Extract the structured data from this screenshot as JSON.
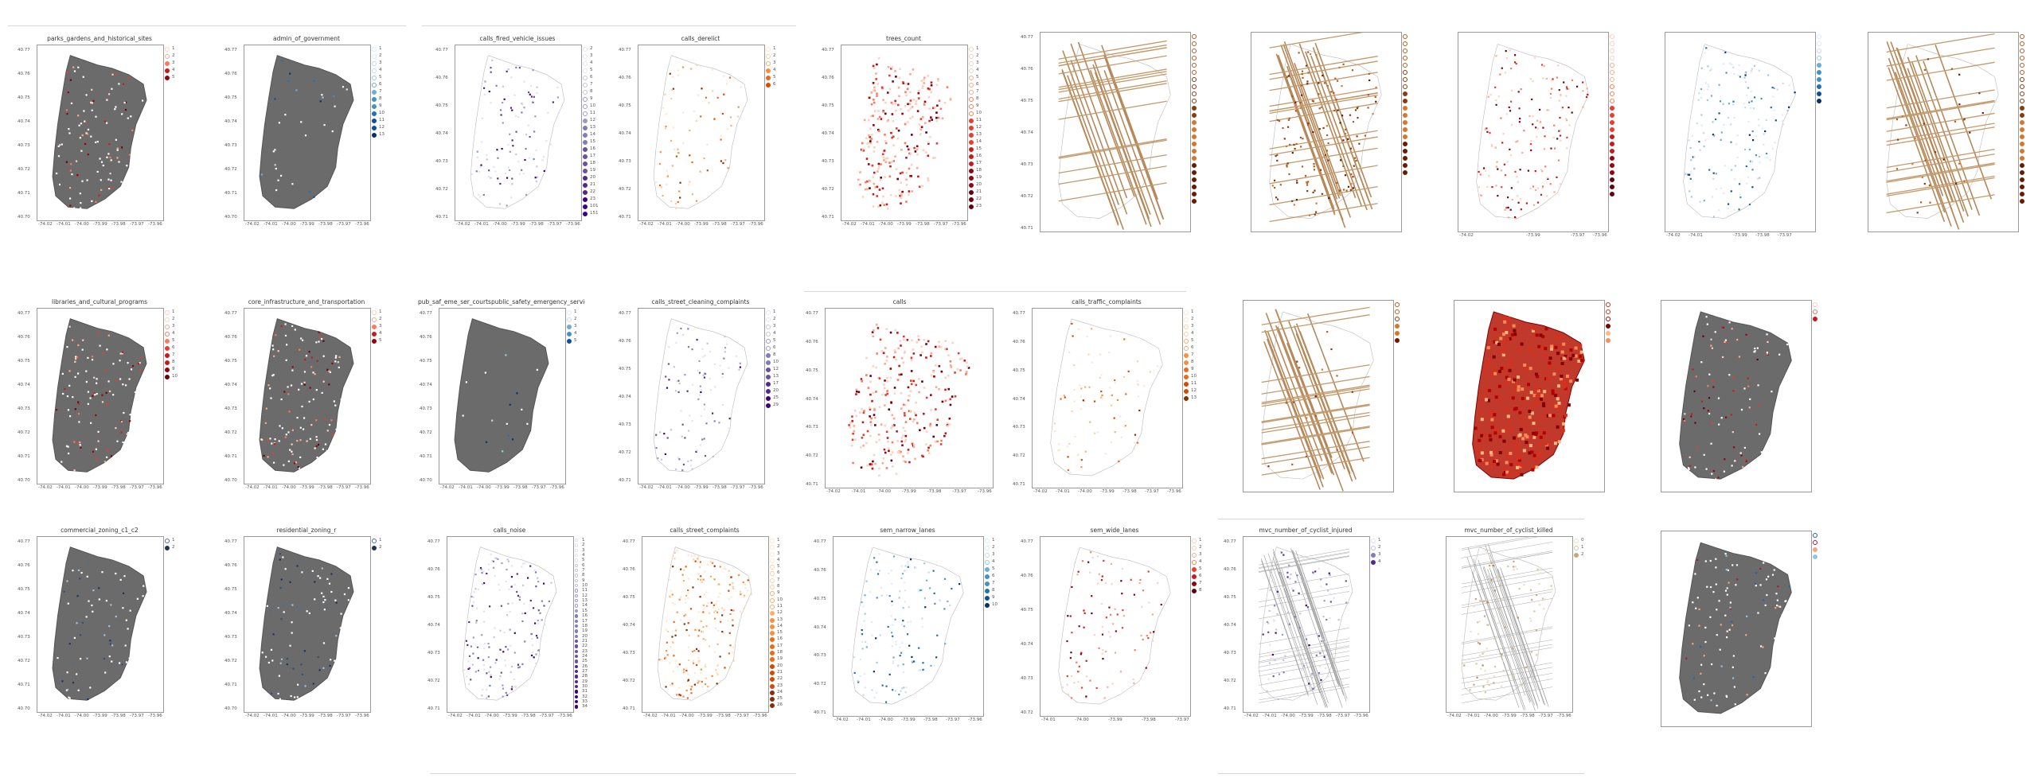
{
  "page": {
    "background": "#ffffff"
  },
  "chart_data": [
    {
      "type": "scatter",
      "title": "parks_gardens_and_historical_sites",
      "cmap": "reds",
      "map": "gray",
      "density": 0.35,
      "yticks": [
        "40.77",
        "40.76",
        "40.75",
        "40.74",
        "40.73",
        "40.72",
        "40.71",
        "40.70"
      ],
      "xticks": [
        "-74.02",
        "-74.01",
        "-74.00",
        "-73.99",
        "-73.98",
        "-73.97",
        "-73.96"
      ],
      "legend": [
        "1",
        "2",
        "3",
        "4",
        "5"
      ],
      "seed": 11
    },
    {
      "type": "scatter",
      "title": "admin_of_government",
      "cmap": "blues",
      "map": "gray",
      "density": 0.1,
      "yticks": [
        "40.77",
        "40.76",
        "40.75",
        "40.74",
        "40.73",
        "40.72",
        "40.71",
        "40.70"
      ],
      "xticks": [
        "-74.02",
        "-74.01",
        "-74.00",
        "-73.99",
        "-73.98",
        "-73.97",
        "-73.96"
      ],
      "legend": [
        "1",
        "2",
        "3",
        "4",
        "5",
        "6",
        "7",
        "8",
        "9",
        "10",
        "11",
        "12",
        "13"
      ],
      "seed": 12
    },
    {
      "type": "scatter",
      "title": "calls_fired_vehicle_issues",
      "cmap": "purples",
      "map": "light",
      "density": 0.35,
      "yticks": [
        "40.77",
        "40.76",
        "40.75",
        "40.74",
        "40.73",
        "40.72",
        "40.71"
      ],
      "xticks": [
        "-74.02",
        "-74.01",
        "-74.00",
        "-73.99",
        "-73.98",
        "-73.97",
        "-73.96"
      ],
      "legend": [
        "2",
        "3",
        "4",
        "5",
        "6",
        "7",
        "8",
        "9",
        "10",
        "11",
        "12",
        "13",
        "14",
        "15",
        "16",
        "17",
        "18",
        "19",
        "20",
        "21",
        "22",
        "23",
        "101",
        "151"
      ],
      "seed": 13
    },
    {
      "type": "scatter",
      "title": "calls_derelict",
      "cmap": "oranges",
      "map": "light",
      "density": 0.25,
      "yticks": [
        "40.77",
        "40.76",
        "40.75",
        "40.74",
        "40.73",
        "40.72",
        "40.71"
      ],
      "xticks": [
        "-74.02",
        "-74.01",
        "-74.00",
        "-73.99",
        "-73.98",
        "-73.97",
        "-73.96"
      ],
      "legend": [
        "1",
        "2",
        "3",
        "4",
        "5",
        "6"
      ],
      "seed": 14
    },
    {
      "type": "scatter",
      "title": "trees_count",
      "cmap": "reds",
      "map": "dense",
      "density": 0.9,
      "yticks": [
        "40.77",
        "40.76",
        "40.75",
        "40.74",
        "40.73",
        "40.72",
        "40.71"
      ],
      "xticks": [
        "-74.02",
        "-74.01",
        "-74.00",
        "-73.99",
        "-73.98",
        "-73.97",
        "-73.96"
      ],
      "legend": [
        "1",
        "2",
        "3",
        "4",
        "5",
        "6",
        "7",
        "8",
        "9",
        "10",
        "11",
        "12",
        "13",
        "14",
        "15",
        "16",
        "17",
        "18",
        "19",
        "20",
        "21",
        "22",
        "23"
      ],
      "seed": 15
    },
    {
      "type": "scatter",
      "title": "",
      "cmap": "streets",
      "map": "streets",
      "density": 0.0,
      "yticks": [
        "40.77",
        "40.76",
        "40.75",
        "40.74",
        "40.73",
        "40.72",
        "40.71"
      ],
      "xticks": [
        "",
        "",
        "",
        "",
        "",
        "",
        ""
      ],
      "legend": [
        "",
        "",
        "",
        "",
        "",
        "",
        "",
        "",
        "",
        "",
        "",
        "",
        "",
        "",
        "",
        "",
        "",
        "",
        "",
        "",
        "",
        "",
        "",
        ""
      ],
      "seed": 16
    },
    {
      "type": "scatter",
      "title": "",
      "cmap": "streets",
      "map": "streetsdense",
      "density": 0.5,
      "yticks": [
        "",
        "",
        "",
        "",
        "",
        "",
        ""
      ],
      "xticks": [
        "",
        "",
        "",
        "",
        "",
        "",
        ""
      ],
      "legend": [
        "",
        "",
        "",
        "",
        "",
        "",
        "",
        "",
        "",
        "",
        "",
        "",
        "",
        "",
        "",
        "",
        "",
        "",
        "",
        ""
      ],
      "seed": 17
    },
    {
      "type": "scatter",
      "title": "",
      "cmap": "reds",
      "map": "light",
      "density": 0.55,
      "yticks": [
        "",
        "",
        "",
        "",
        "",
        "",
        ""
      ],
      "xticks": [
        "-74.02",
        "",
        "",
        "-73.99",
        "",
        "-73.97",
        "-73.96"
      ],
      "legend": [
        "",
        "",
        "",
        "",
        "",
        "",
        "",
        "",
        "",
        "",
        "",
        "",
        "",
        "",
        "",
        "",
        "",
        "",
        "",
        "",
        "",
        "",
        ""
      ],
      "seed": 18
    },
    {
      "type": "scatter",
      "title": "",
      "cmap": "blues",
      "map": "light",
      "density": 0.5,
      "yticks": [
        "",
        "",
        "",
        "",
        "",
        "",
        ""
      ],
      "xticks": [
        "-74.02",
        "-74.01",
        "",
        "-73.99",
        "-73.98",
        "-73.97",
        ""
      ],
      "legend": [
        "",
        "",
        "",
        "",
        "",
        "",
        "",
        "",
        "",
        ""
      ],
      "seed": 19
    },
    {
      "type": "scatter",
      "title": "",
      "cmap": "streets",
      "map": "streets",
      "density": 0.1,
      "yticks": [
        "",
        "",
        "",
        "",
        "",
        "",
        ""
      ],
      "xticks": [
        "",
        "",
        "",
        "",
        "",
        "",
        ""
      ],
      "legend": [
        "",
        "",
        "",
        "",
        "",
        "",
        "",
        "",
        "",
        "",
        "",
        "",
        "",
        "",
        "",
        "",
        "",
        "",
        "",
        "",
        "",
        "",
        "",
        ""
      ],
      "seed": 20
    },
    {
      "type": "scatter",
      "title": "libraries_and_cultural_programs",
      "cmap": "reds",
      "map": "gray",
      "density": 0.35,
      "yticks": [
        "40.77",
        "40.76",
        "40.75",
        "40.74",
        "40.73",
        "40.72",
        "40.71",
        "40.70"
      ],
      "xticks": [
        "-74.02",
        "-74.01",
        "-74.00",
        "-73.99",
        "-73.98",
        "-73.97",
        "-73.96"
      ],
      "legend": [
        "1",
        "2",
        "3",
        "4",
        "5",
        "6",
        "7",
        "8",
        "9",
        "10"
      ],
      "seed": 21
    },
    {
      "type": "scatter",
      "title": "core_infrastructure_and_transportation",
      "cmap": "reds",
      "map": "gray",
      "density": 0.4,
      "yticks": [
        "40.77",
        "40.76",
        "40.75",
        "40.74",
        "40.73",
        "40.72",
        "40.71",
        "40.70"
      ],
      "xticks": [
        "-74.02",
        "-74.01",
        "-74.00",
        "-73.99",
        "-73.98",
        "-73.97",
        "-73.96"
      ],
      "legend": [
        "1",
        "2",
        "3",
        "4",
        "5"
      ],
      "seed": 22
    },
    {
      "type": "scatter",
      "title": "pub_saf_eme_ser_courtspublic_safety_emergency_services_and_admin_of_justice count",
      "cmap": "blues",
      "map": "gray",
      "density": 0.05,
      "yticks": [
        "40.77",
        "40.76",
        "40.75",
        "40.74",
        "40.73",
        "40.72",
        "40.71",
        "40.70"
      ],
      "xticks": [
        "-74.02",
        "-74.01",
        "-74.00",
        "-73.99",
        "-73.98",
        "-73.97",
        "-73.96"
      ],
      "legend": [
        "1",
        "2",
        "3",
        "4",
        "5"
      ],
      "seed": 23
    },
    {
      "type": "scatter",
      "title": "calls_street_cleaning_complaints",
      "cmap": "purples",
      "map": "light",
      "density": 0.3,
      "yticks": [
        "40.77",
        "40.76",
        "40.75",
        "40.74",
        "40.73",
        "40.72",
        "40.71"
      ],
      "xticks": [
        "-74.02",
        "-74.01",
        "-74.00",
        "-73.99",
        "-73.98",
        "-73.97",
        "-73.96"
      ],
      "legend": [
        "1",
        "2",
        "3",
        "4",
        "5",
        "6",
        "8",
        "10",
        "12",
        "13",
        "17",
        "20",
        "25",
        "29"
      ],
      "seed": 24
    },
    {
      "type": "scatter",
      "title": "calls",
      "cmap": "reds",
      "map": "dense",
      "density": 0.95,
      "yticks": [
        "40.77",
        "40.76",
        "40.75",
        "40.74",
        "40.73",
        "40.72",
        "40.71"
      ],
      "xticks": [
        "-74.02",
        "-74.01",
        "-74.00",
        "-73.99",
        "-73.98",
        "-73.97",
        "-73.96"
      ],
      "legend": [],
      "seed": 25
    },
    {
      "type": "scatter",
      "title": "calls_traffic_complaints",
      "cmap": "oranges",
      "map": "light",
      "density": 0.25,
      "yticks": [
        "40.77",
        "40.76",
        "40.75",
        "40.74",
        "40.73",
        "40.72",
        "40.71"
      ],
      "xticks": [
        "-74.02",
        "-74.01",
        "-74.00",
        "-73.99",
        "-73.98",
        "-73.97",
        "-73.96"
      ],
      "legend": [
        "1",
        "2",
        "3",
        "4",
        "5",
        "6",
        "7",
        "8",
        "9",
        "10",
        "11",
        "12",
        "13"
      ],
      "seed": 26
    },
    {
      "type": "scatter",
      "title": "",
      "cmap": "streets",
      "map": "streets",
      "density": 0.05,
      "yticks": [
        "",
        "",
        "",
        "",
        "",
        "",
        ""
      ],
      "xticks": [
        "",
        "",
        "",
        "",
        "",
        "",
        ""
      ],
      "legend": [
        "",
        "",
        "",
        "",
        "",
        ""
      ],
      "seed": 27
    },
    {
      "type": "scatter",
      "title": "",
      "cmap": "redzone",
      "map": "redzone",
      "density": 0.95,
      "yticks": [
        "",
        "",
        "",
        "",
        "",
        "",
        ""
      ],
      "xticks": [
        "",
        "",
        "",
        "",
        "",
        "",
        ""
      ],
      "legend": [
        "",
        "",
        "",
        "",
        "",
        ""
      ],
      "seed": 28
    },
    {
      "type": "scatter",
      "title": "",
      "cmap": "reds",
      "map": "gray",
      "density": 0.3,
      "yticks": [
        "",
        "",
        "",
        "",
        "",
        "",
        ""
      ],
      "xticks": [
        "",
        "",
        "",
        "",
        "",
        "",
        ""
      ],
      "legend": [
        "",
        "",
        ""
      ],
      "seed": 29
    },
    {
      "type": "scatter",
      "title": "commercial_zoning_c1_c2",
      "cmap": "navy",
      "map": "gray",
      "density": 0.2,
      "yticks": [
        "40.77",
        "40.76",
        "40.75",
        "40.74",
        "40.73",
        "40.72",
        "40.71",
        "40.70"
      ],
      "xticks": [
        "-74.02",
        "-74.01",
        "-74.00",
        "-73.99",
        "-73.98",
        "-73.97",
        "-73.96"
      ],
      "legend": [
        "1",
        "2"
      ],
      "seed": 30
    },
    {
      "type": "scatter",
      "title": "residential_zoning_r",
      "cmap": "navy",
      "map": "gray",
      "density": 0.25,
      "yticks": [
        "40.77",
        "40.76",
        "40.75",
        "40.74",
        "40.73",
        "40.72",
        "40.71",
        "40.70"
      ],
      "xticks": [
        "-74.02",
        "-74.01",
        "-74.00",
        "-73.99",
        "-73.98",
        "-73.97",
        "-73.96"
      ],
      "legend": [
        "1",
        "2"
      ],
      "seed": 31
    },
    {
      "type": "scatter",
      "title": "calls_noise",
      "cmap": "purples",
      "map": "light",
      "density": 0.6,
      "yticks": [
        "40.77",
        "40.76",
        "40.75",
        "40.74",
        "40.73",
        "40.72",
        "40.71"
      ],
      "xticks": [
        "-74.02",
        "-74.01",
        "-74.00",
        "-73.99",
        "-73.98",
        "-73.97",
        "-73.96"
      ],
      "legend": [
        "1",
        "2",
        "3",
        "4",
        "5",
        "6",
        "7",
        "8",
        "9",
        "10",
        "11",
        "12",
        "13",
        "14",
        "15",
        "16",
        "17",
        "18",
        "19",
        "20",
        "21",
        "22",
        "23",
        "24",
        "25",
        "26",
        "27",
        "28",
        "29",
        "30",
        "31",
        "32",
        "33",
        "34"
      ],
      "seed": 32
    },
    {
      "type": "scatter",
      "title": "calls_street_complaints",
      "cmap": "oranges",
      "map": "light",
      "density": 0.7,
      "yticks": [
        "40.77",
        "40.76",
        "40.75",
        "40.74",
        "40.73",
        "40.72",
        "40.71"
      ],
      "xticks": [
        "-74.02",
        "-74.01",
        "-74.00",
        "-73.99",
        "-73.98",
        "-73.97",
        "-73.96"
      ],
      "legend": [
        "1",
        "2",
        "3",
        "4",
        "5",
        "6",
        "7",
        "8",
        "9",
        "10",
        "11",
        "12",
        "13",
        "14",
        "15",
        "16",
        "17",
        "18",
        "19",
        "20",
        "21",
        "22",
        "23",
        "24",
        "25",
        "26"
      ],
      "seed": 33
    },
    {
      "type": "scatter",
      "title": "sem_narrow_lanes",
      "cmap": "blues",
      "map": "light",
      "density": 0.45,
      "yticks": [
        "40.77",
        "40.76",
        "40.75",
        "40.74",
        "40.73",
        "40.72",
        "40.71"
      ],
      "xticks": [
        "-74.02",
        "-74.01",
        "-74.00",
        "-73.99",
        "-73.98",
        "-73.97",
        "-73.96"
      ],
      "legend": [
        "1",
        "2",
        "3",
        "4",
        "5",
        "6",
        "7",
        "8",
        "9",
        "10"
      ],
      "seed": 34
    },
    {
      "type": "scatter",
      "title": "sem_wide_lanes",
      "cmap": "reds",
      "map": "light",
      "density": 0.3,
      "yticks": [
        "40.77",
        "40.76",
        "40.75",
        "40.74",
        "40.73",
        "40.72"
      ],
      "xticks": [
        "-74.01",
        "-74.00",
        "-73.99",
        "-73.98",
        "-73.97"
      ],
      "legend": [
        "1",
        "2",
        "3",
        "4",
        "5",
        "6",
        "7",
        "8"
      ],
      "seed": 35
    },
    {
      "type": "scatter",
      "title": "mvc_number_of_cyclist_injured",
      "cmap": "purples",
      "map": "streetsthin",
      "density": 0.35,
      "yticks": [
        "40.77",
        "40.76",
        "40.75",
        "40.74",
        "40.73",
        "40.72",
        "40.71"
      ],
      "xticks": [
        "-74.02",
        "-74.01",
        "-74.00",
        "-73.99",
        "-73.98",
        "-73.97",
        "-73.96"
      ],
      "legend": [
        "1",
        "2",
        "3",
        "4"
      ],
      "seed": 36
    },
    {
      "type": "scatter",
      "title": "mvc_number_of_cyclist_killed",
      "cmap": "tan",
      "map": "streetsthin",
      "density": 0.3,
      "yticks": [],
      "xticks": [
        "-74.02",
        "-74.01",
        "-74.00",
        "-73.99",
        "-73.98",
        "-73.97",
        "-73.96"
      ],
      "legend": [
        "0",
        "1",
        "2"
      ],
      "seed": 37
    },
    {
      "type": "scatter",
      "title": "",
      "cmap": "mixed",
      "map": "gray",
      "density": 0.3,
      "yticks": [
        "",
        "",
        "",
        "",
        "",
        "",
        ""
      ],
      "xticks": [
        "",
        "",
        "",
        "",
        "",
        "",
        ""
      ],
      "legend": [
        "",
        "",
        "",
        "",
        ""
      ],
      "seed": 38
    }
  ]
}
